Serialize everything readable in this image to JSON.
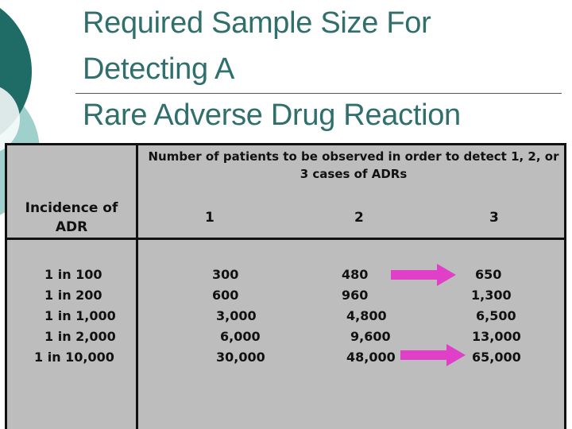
{
  "slide": {
    "title_line1": "Required Sample Size For Detecting A",
    "title_line2": "Rare Adverse Drug Reaction"
  },
  "table": {
    "corner_header": "Incidence of ADR",
    "group_header": "Number of patients to be observed in order  to detect 1, 2, or 3 cases of ADRs",
    "columns": [
      "1",
      "2",
      "3"
    ],
    "rows": [
      {
        "incidence": "1 in 100",
        "c1": "300",
        "c2": "480",
        "c3": "650"
      },
      {
        "incidence": "1 in 200",
        "c1": "600",
        "c2": "960",
        "c3": "1,300"
      },
      {
        "incidence": "1 in 1,000",
        "c1": "3,000",
        "c2": "4,800",
        "c3": "6,500"
      },
      {
        "incidence": "1 in 2,000",
        "c1": "6,000",
        "c2": "9,600",
        "c3": "13,000"
      },
      {
        "incidence": "1 in 10,000",
        "c1": "30,000",
        "c2": "48,000",
        "c3": "65,000"
      }
    ]
  },
  "annotations": {
    "arrow_color": "#e040c8",
    "highlighted_rows": [
      "1 in 100",
      "1 in 10,000"
    ]
  },
  "theme": {
    "title_color": "#2f6f6c",
    "deco_dark": "#1f6b66",
    "deco_light": "#9fd0cc",
    "table_bg": "#bdbdbd"
  }
}
